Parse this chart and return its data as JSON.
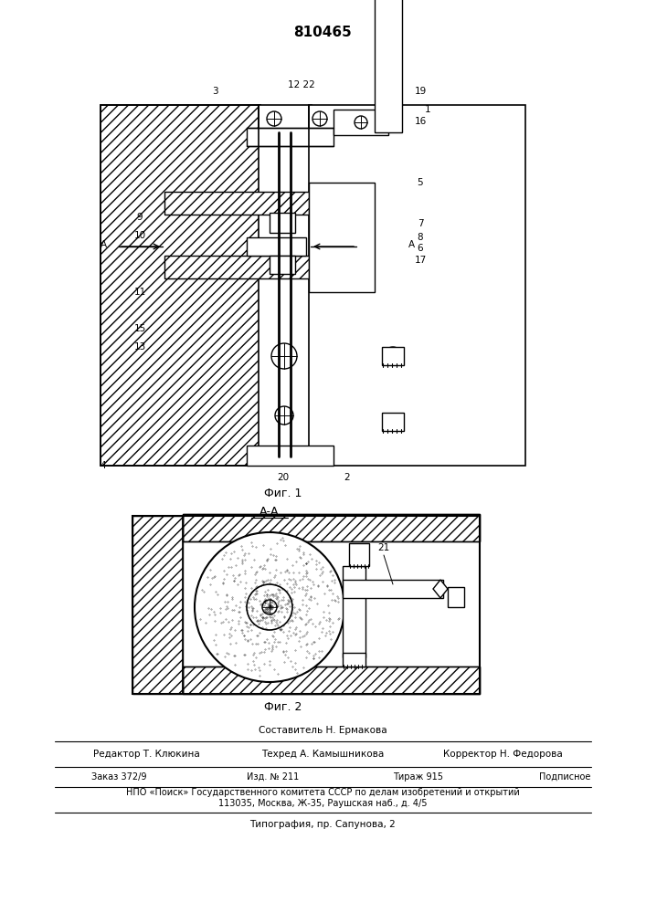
{
  "patent_number": "810465",
  "fig1_label": "Фиг. 1",
  "fig2_label": "Фиг. 2",
  "section_label": "А-А",
  "A_left": "А",
  "A_right": "А",
  "sestavitel": "Составитель Н. Ермакова",
  "redaktor": "Редактор Т. Клюкина",
  "tehred": "Техред А. Камышникова",
  "korrektor": "Корректор Н. Федорова",
  "zakaz": "Заказ 372/9",
  "izd": "Изд. № 211",
  "tirazh": "Тираж 915",
  "podpisnoe": "Подписное",
  "npo": "НПО «Поиск» Государственного комитета СССР по делам изобретений и открытий",
  "address": "113035, Москва, Ж-35, Раушская наб., д. 4/5",
  "tipografia": "Типография, пр. Сапунова, 2",
  "bg_color": "#ffffff",
  "line_color": "#000000",
  "hatch_color": "#000000"
}
